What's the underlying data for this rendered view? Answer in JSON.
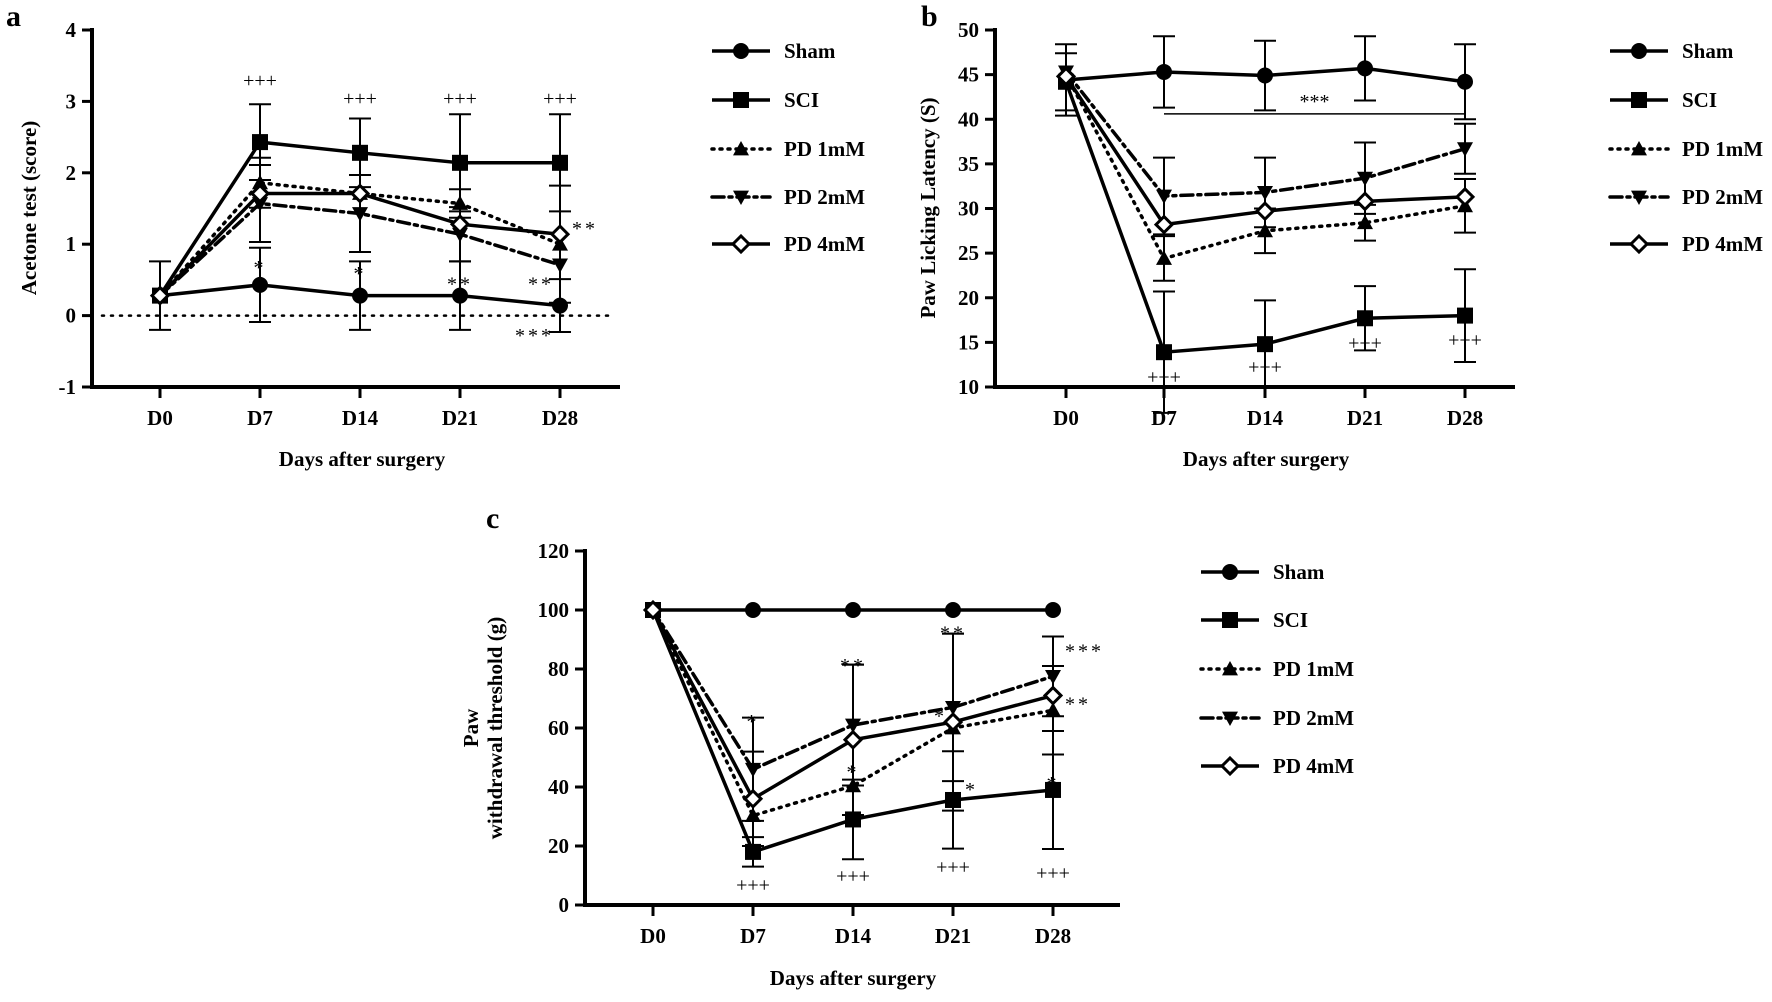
{
  "chart_data": [
    {
      "panel": "a",
      "type": "line",
      "title": "",
      "xlabel": "Days after surgery",
      "ylabel": "Acetone test (score)",
      "x": [
        "D0",
        "D7",
        "D14",
        "D21",
        "D28"
      ],
      "ylim": [
        -1,
        4
      ],
      "yticks": [
        "-1",
        "0",
        "1",
        "2",
        "3",
        "4"
      ],
      "reference_line": 0,
      "legend_position": "right",
      "series": [
        {
          "name": "Sham",
          "marker": "circle",
          "line": "solid",
          "values": [
            0.28,
            0.43,
            0.28,
            0.28,
            0.14
          ],
          "err": [
            0.48,
            0.52,
            0.48,
            0.48,
            0.37
          ]
        },
        {
          "name": "SCI",
          "marker": "square",
          "line": "solid",
          "values": [
            0.28,
            2.43,
            2.28,
            2.14,
            2.14
          ],
          "err": [
            0,
            0.53,
            0.48,
            0.68,
            0.68
          ]
        },
        {
          "name": "PD 1mM",
          "marker": "triangle-up",
          "line": "dotted",
          "values": [
            0.28,
            1.86,
            1.71,
            1.57,
            1.0
          ],
          "err": [
            0,
            0.35,
            0,
            0.2,
            0.82
          ]
        },
        {
          "name": "PD 2mM",
          "marker": "triangle-down",
          "line": "dashdot",
          "values": [
            0.28,
            1.57,
            1.43,
            1.14,
            0.71
          ],
          "err": [
            0,
            0.54,
            0.54,
            0.38,
            0
          ]
        },
        {
          "name": "PD 4mM",
          "marker": "diamond-open",
          "line": "solid",
          "values": [
            0.28,
            1.71,
            1.71,
            1.28,
            1.14
          ],
          "err": [
            0,
            0,
            0,
            0,
            0
          ]
        }
      ],
      "annotations": [
        {
          "text": "+++",
          "x": "D7",
          "y": 3.3
        },
        {
          "text": "+++",
          "x": "D14",
          "y": 3.05
        },
        {
          "text": "+++",
          "x": "D21",
          "y": 3.05
        },
        {
          "text": "+++",
          "x": "D28",
          "y": 3.05
        },
        {
          "text": "*",
          "x": "D7",
          "y": 0.75
        },
        {
          "text": "*",
          "x": "D14",
          "y": 0.67
        },
        {
          "text": "**",
          "x": "D21",
          "y": 0.52
        },
        {
          "text": "**",
          "x": "D28",
          "y": 0.52,
          "side": "left"
        },
        {
          "text": "**",
          "x": "D28",
          "y": 1.3,
          "side": "right"
        },
        {
          "text": "***",
          "x": "D28",
          "y": -0.2,
          "side": "left"
        }
      ]
    },
    {
      "panel": "b",
      "type": "line",
      "title": "",
      "xlabel": "Days after surgery",
      "ylabel": "Paw Licking Latency (S)",
      "x": [
        "D0",
        "D7",
        "D14",
        "D21",
        "D28"
      ],
      "ylim": [
        10,
        50
      ],
      "yticks": [
        "10",
        "15",
        "20",
        "25",
        "30",
        "35",
        "40",
        "45",
        "50"
      ],
      "legend_position": "right",
      "series": [
        {
          "name": "Sham",
          "marker": "circle",
          "line": "solid",
          "values": [
            44.4,
            45.3,
            44.9,
            45.7,
            44.2
          ],
          "err": [
            4.0,
            4.0,
            3.9,
            3.6,
            4.2
          ]
        },
        {
          "name": "SCI",
          "marker": "square",
          "line": "solid",
          "values": [
            44.2,
            13.9,
            14.8,
            17.7,
            18.0
          ],
          "err": [
            3.2,
            6.8,
            4.9,
            3.6,
            5.2
          ]
        },
        {
          "name": "PD 1mM",
          "marker": "triangle-up",
          "line": "dotted",
          "values": [
            45.0,
            24.4,
            27.5,
            28.4,
            30.3
          ],
          "err": [
            0,
            2.5,
            2.5,
            2.0,
            3.0
          ]
        },
        {
          "name": "PD 2mM",
          "marker": "triangle-down",
          "line": "dashdot",
          "values": [
            45.3,
            31.4,
            31.8,
            33.4,
            36.7
          ],
          "err": [
            0,
            4.3,
            3.9,
            4.0,
            2.8
          ]
        },
        {
          "name": "PD 4mM",
          "marker": "diamond-open",
          "line": "solid",
          "values": [
            44.8,
            28.2,
            29.7,
            30.8,
            31.3
          ],
          "err": [
            0,
            0,
            0,
            0,
            0
          ]
        }
      ],
      "bracket": {
        "text": "***",
        "from": "D7",
        "to": "D28",
        "y": 40.6
      },
      "annotations": [
        {
          "text": "+++",
          "x": "D7",
          "y": 11.2
        },
        {
          "text": "+++",
          "x": "D14",
          "y": 12.3
        },
        {
          "text": "+++",
          "x": "D21",
          "y": 15.0
        },
        {
          "text": "+++",
          "x": "D28",
          "y": 15.3
        }
      ]
    },
    {
      "panel": "c",
      "type": "line",
      "title": "",
      "xlabel": "Days after surgery",
      "ylabel": [
        "Paw",
        "withdrawal threshold (g)"
      ],
      "x": [
        "D0",
        "D7",
        "D14",
        "D21",
        "D28"
      ],
      "ylim": [
        0,
        120
      ],
      "yticks": [
        "0",
        "20",
        "40",
        "60",
        "80",
        "100",
        "120"
      ],
      "legend_position": "right",
      "series": [
        {
          "name": "Sham",
          "marker": "circle",
          "line": "solid",
          "values": [
            100,
            100,
            100,
            100,
            100
          ],
          "err": [
            0,
            0,
            0,
            0,
            0
          ]
        },
        {
          "name": "SCI",
          "marker": "square",
          "line": "solid",
          "values": [
            100,
            18,
            29,
            35.6,
            39
          ],
          "err": [
            0,
            5,
            13.5,
            16.5,
            20
          ]
        },
        {
          "name": "PD 1mM",
          "marker": "triangle-up",
          "line": "dotted",
          "values": [
            100,
            30.3,
            40.4,
            60,
            66
          ],
          "err": [
            0,
            0,
            0,
            0,
            15
          ]
        },
        {
          "name": "PD 2mM",
          "marker": "triangle-down",
          "line": "dashdot",
          "values": [
            100,
            46,
            61,
            67,
            77.5
          ],
          "err": [
            0,
            17.5,
            20.5,
            25,
            13.5
          ]
        },
        {
          "name": "PD 4mM",
          "marker": "diamond-open",
          "line": "solid",
          "values": [
            100,
            36,
            56,
            62,
            71
          ],
          "err": [
            0,
            16,
            25.5,
            30,
            0
          ]
        }
      ],
      "annotations": [
        {
          "text": "*",
          "x": "D7",
          "y": 64
        },
        {
          "text": "+++",
          "x": "D7",
          "y": 7
        },
        {
          "text": "**",
          "x": "D14",
          "y": 83
        },
        {
          "text": "*",
          "x": "D14",
          "y": 47
        },
        {
          "text": "+++",
          "x": "D14",
          "y": 10
        },
        {
          "text": "**",
          "x": "D21",
          "y": 94
        },
        {
          "text": "*",
          "x": "D21",
          "y": 66,
          "side": "left"
        },
        {
          "text": "*",
          "x": "D21",
          "y": 41,
          "side": "right"
        },
        {
          "text": "+++",
          "x": "D21",
          "y": 13
        },
        {
          "text": "***",
          "x": "D28",
          "y": 88,
          "side": "right"
        },
        {
          "text": "**",
          "x": "D28",
          "y": 70,
          "side": "right"
        },
        {
          "text": "*",
          "x": "D28",
          "y": 43
        },
        {
          "text": "+++",
          "x": "D28",
          "y": 11
        }
      ]
    }
  ]
}
